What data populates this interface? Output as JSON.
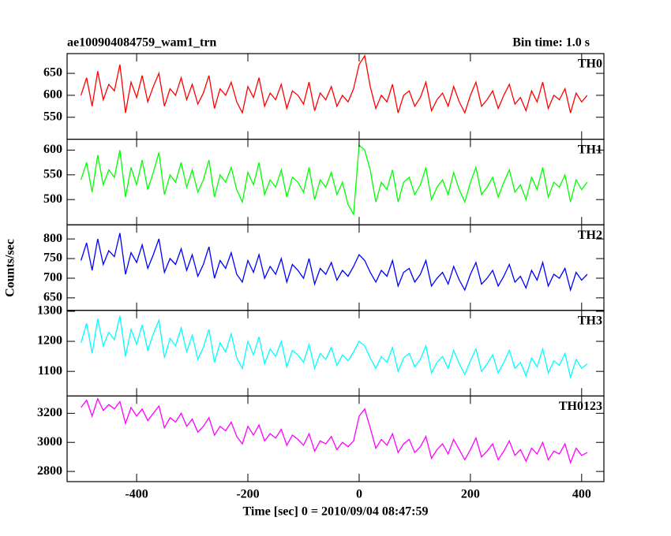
{
  "chart_data": {
    "type": "line",
    "title": "ae100904084759_wam1_trn",
    "subtitle": "Bin time: 1.0 s",
    "xlabel": "Time [sec] 0 = 2010/09/04 08:47:59",
    "ylabel": "Counts/sec",
    "xlim": [
      -525,
      440
    ],
    "xticks": [
      -400,
      -200,
      0,
      200,
      400
    ],
    "x": [
      -500,
      -490,
      -480,
      -470,
      -460,
      -450,
      -440,
      -430,
      -420,
      -410,
      -400,
      -390,
      -380,
      -370,
      -360,
      -350,
      -340,
      -330,
      -320,
      -310,
      -300,
      -290,
      -280,
      -270,
      -260,
      -250,
      -240,
      -230,
      -220,
      -210,
      -200,
      -190,
      -180,
      -170,
      -160,
      -150,
      -140,
      -130,
      -120,
      -110,
      -100,
      -90,
      -80,
      -70,
      -60,
      -50,
      -40,
      -30,
      -20,
      -10,
      0,
      10,
      20,
      30,
      40,
      50,
      60,
      70,
      80,
      90,
      100,
      110,
      120,
      130,
      140,
      150,
      160,
      170,
      180,
      190,
      200,
      210,
      220,
      230,
      240,
      250,
      260,
      270,
      280,
      290,
      300,
      310,
      320,
      330,
      340,
      350,
      360,
      370,
      380,
      390,
      400,
      410
    ],
    "series": [
      {
        "name": "TH0",
        "color": "#ff0000",
        "ylim": [
          500,
          695
        ],
        "yticks": [
          550,
          600,
          650
        ],
        "values": [
          600,
          640,
          575,
          655,
          590,
          625,
          610,
          670,
          560,
          630,
          595,
          645,
          585,
          620,
          650,
          575,
          615,
          600,
          640,
          590,
          625,
          580,
          605,
          645,
          570,
          615,
          600,
          630,
          585,
          560,
          620,
          595,
          640,
          575,
          605,
          590,
          625,
          570,
          610,
          600,
          580,
          630,
          565,
          605,
          590,
          620,
          575,
          600,
          585,
          615,
          670,
          690,
          620,
          570,
          600,
          585,
          625,
          560,
          600,
          610,
          575,
          595,
          630,
          565,
          590,
          605,
          575,
          620,
          585,
          560,
          600,
          630,
          575,
          590,
          610,
          570,
          600,
          625,
          580,
          595,
          565,
          610,
          585,
          630,
          570,
          600,
          590,
          615,
          560,
          605,
          585,
          600
        ]
      },
      {
        "name": "TH1",
        "color": "#00ff00",
        "ylim": [
          449,
          622
        ],
        "yticks": [
          500,
          550,
          600
        ],
        "values": [
          540,
          575,
          515,
          590,
          530,
          560,
          545,
          600,
          505,
          565,
          530,
          580,
          520,
          555,
          595,
          510,
          550,
          535,
          575,
          525,
          560,
          515,
          540,
          580,
          505,
          550,
          535,
          565,
          520,
          495,
          555,
          530,
          575,
          510,
          540,
          525,
          560,
          505,
          545,
          535,
          515,
          565,
          500,
          540,
          525,
          555,
          510,
          535,
          490,
          470,
          610,
          600,
          560,
          495,
          535,
          520,
          560,
          495,
          535,
          545,
          510,
          530,
          565,
          500,
          525,
          540,
          510,
          555,
          520,
          495,
          535,
          565,
          510,
          525,
          545,
          505,
          535,
          560,
          515,
          530,
          500,
          545,
          520,
          565,
          505,
          535,
          525,
          550,
          495,
          540,
          520,
          535
        ]
      },
      {
        "name": "TH2",
        "color": "#0000ff",
        "ylim": [
          618,
          836
        ],
        "yticks": [
          650,
          700,
          750,
          800
        ],
        "values": [
          745,
          790,
          720,
          800,
          735,
          770,
          755,
          815,
          710,
          765,
          740,
          785,
          725,
          760,
          800,
          715,
          750,
          735,
          775,
          720,
          760,
          705,
          735,
          780,
          700,
          745,
          725,
          765,
          710,
          690,
          745,
          715,
          760,
          700,
          730,
          710,
          750,
          690,
          735,
          720,
          700,
          750,
          685,
          725,
          710,
          740,
          695,
          720,
          705,
          730,
          760,
          745,
          715,
          690,
          720,
          705,
          745,
          680,
          715,
          725,
          690,
          710,
          745,
          680,
          700,
          715,
          685,
          730,
          695,
          670,
          710,
          740,
          685,
          700,
          720,
          680,
          705,
          735,
          690,
          705,
          675,
          720,
          695,
          740,
          680,
          710,
          700,
          725,
          670,
          715,
          695,
          710
        ]
      },
      {
        "name": "TH3",
        "color": "#00ffff",
        "ylim": [
          1018,
          1303
        ],
        "yticks": [
          1100,
          1200,
          1300
        ],
        "values": [
          1195,
          1260,
          1160,
          1275,
          1185,
          1230,
          1205,
          1285,
          1150,
          1240,
          1190,
          1255,
          1170,
          1225,
          1270,
          1145,
          1210,
          1185,
          1245,
          1165,
          1220,
          1140,
          1180,
          1240,
          1130,
          1195,
          1165,
          1225,
          1145,
          1110,
          1200,
          1155,
          1215,
          1125,
          1175,
          1150,
          1200,
          1115,
          1170,
          1155,
          1130,
          1190,
          1110,
          1160,
          1140,
          1180,
          1120,
          1155,
          1135,
          1165,
          1200,
          1185,
          1145,
          1110,
          1150,
          1130,
          1180,
          1100,
          1145,
          1160,
          1115,
          1140,
          1185,
          1095,
          1130,
          1150,
          1110,
          1170,
          1125,
          1090,
          1135,
          1175,
          1100,
          1125,
          1155,
          1095,
          1130,
          1170,
          1110,
          1130,
          1085,
          1145,
          1115,
          1175,
          1095,
          1135,
          1120,
          1160,
          1080,
          1140,
          1110,
          1125
        ]
      },
      {
        "name": "TH0123",
        "color": "#ff00ff",
        "ylim": [
          2730,
          3319
        ],
        "yticks": [
          2800,
          3000,
          3200
        ],
        "values": [
          3240,
          3290,
          3180,
          3300,
          3220,
          3260,
          3230,
          3280,
          3130,
          3240,
          3180,
          3230,
          3150,
          3200,
          3250,
          3100,
          3170,
          3140,
          3200,
          3110,
          3160,
          3070,
          3110,
          3170,
          3050,
          3110,
          3080,
          3140,
          3040,
          2990,
          3110,
          3050,
          3120,
          3010,
          3060,
          3030,
          3090,
          2980,
          3050,
          3020,
          2980,
          3060,
          2940,
          3010,
          2990,
          3040,
          2950,
          3000,
          2970,
          3010,
          3180,
          3230,
          3100,
          2960,
          3020,
          2980,
          3060,
          2930,
          2990,
          3020,
          2930,
          2970,
          3040,
          2890,
          2950,
          2990,
          2920,
          3020,
          2950,
          2880,
          2950,
          3030,
          2900,
          2940,
          2990,
          2880,
          2940,
          3010,
          2910,
          2950,
          2870,
          2960,
          2920,
          3000,
          2880,
          2940,
          2920,
          2990,
          2860,
          2960,
          2910,
          2930
        ]
      }
    ]
  }
}
